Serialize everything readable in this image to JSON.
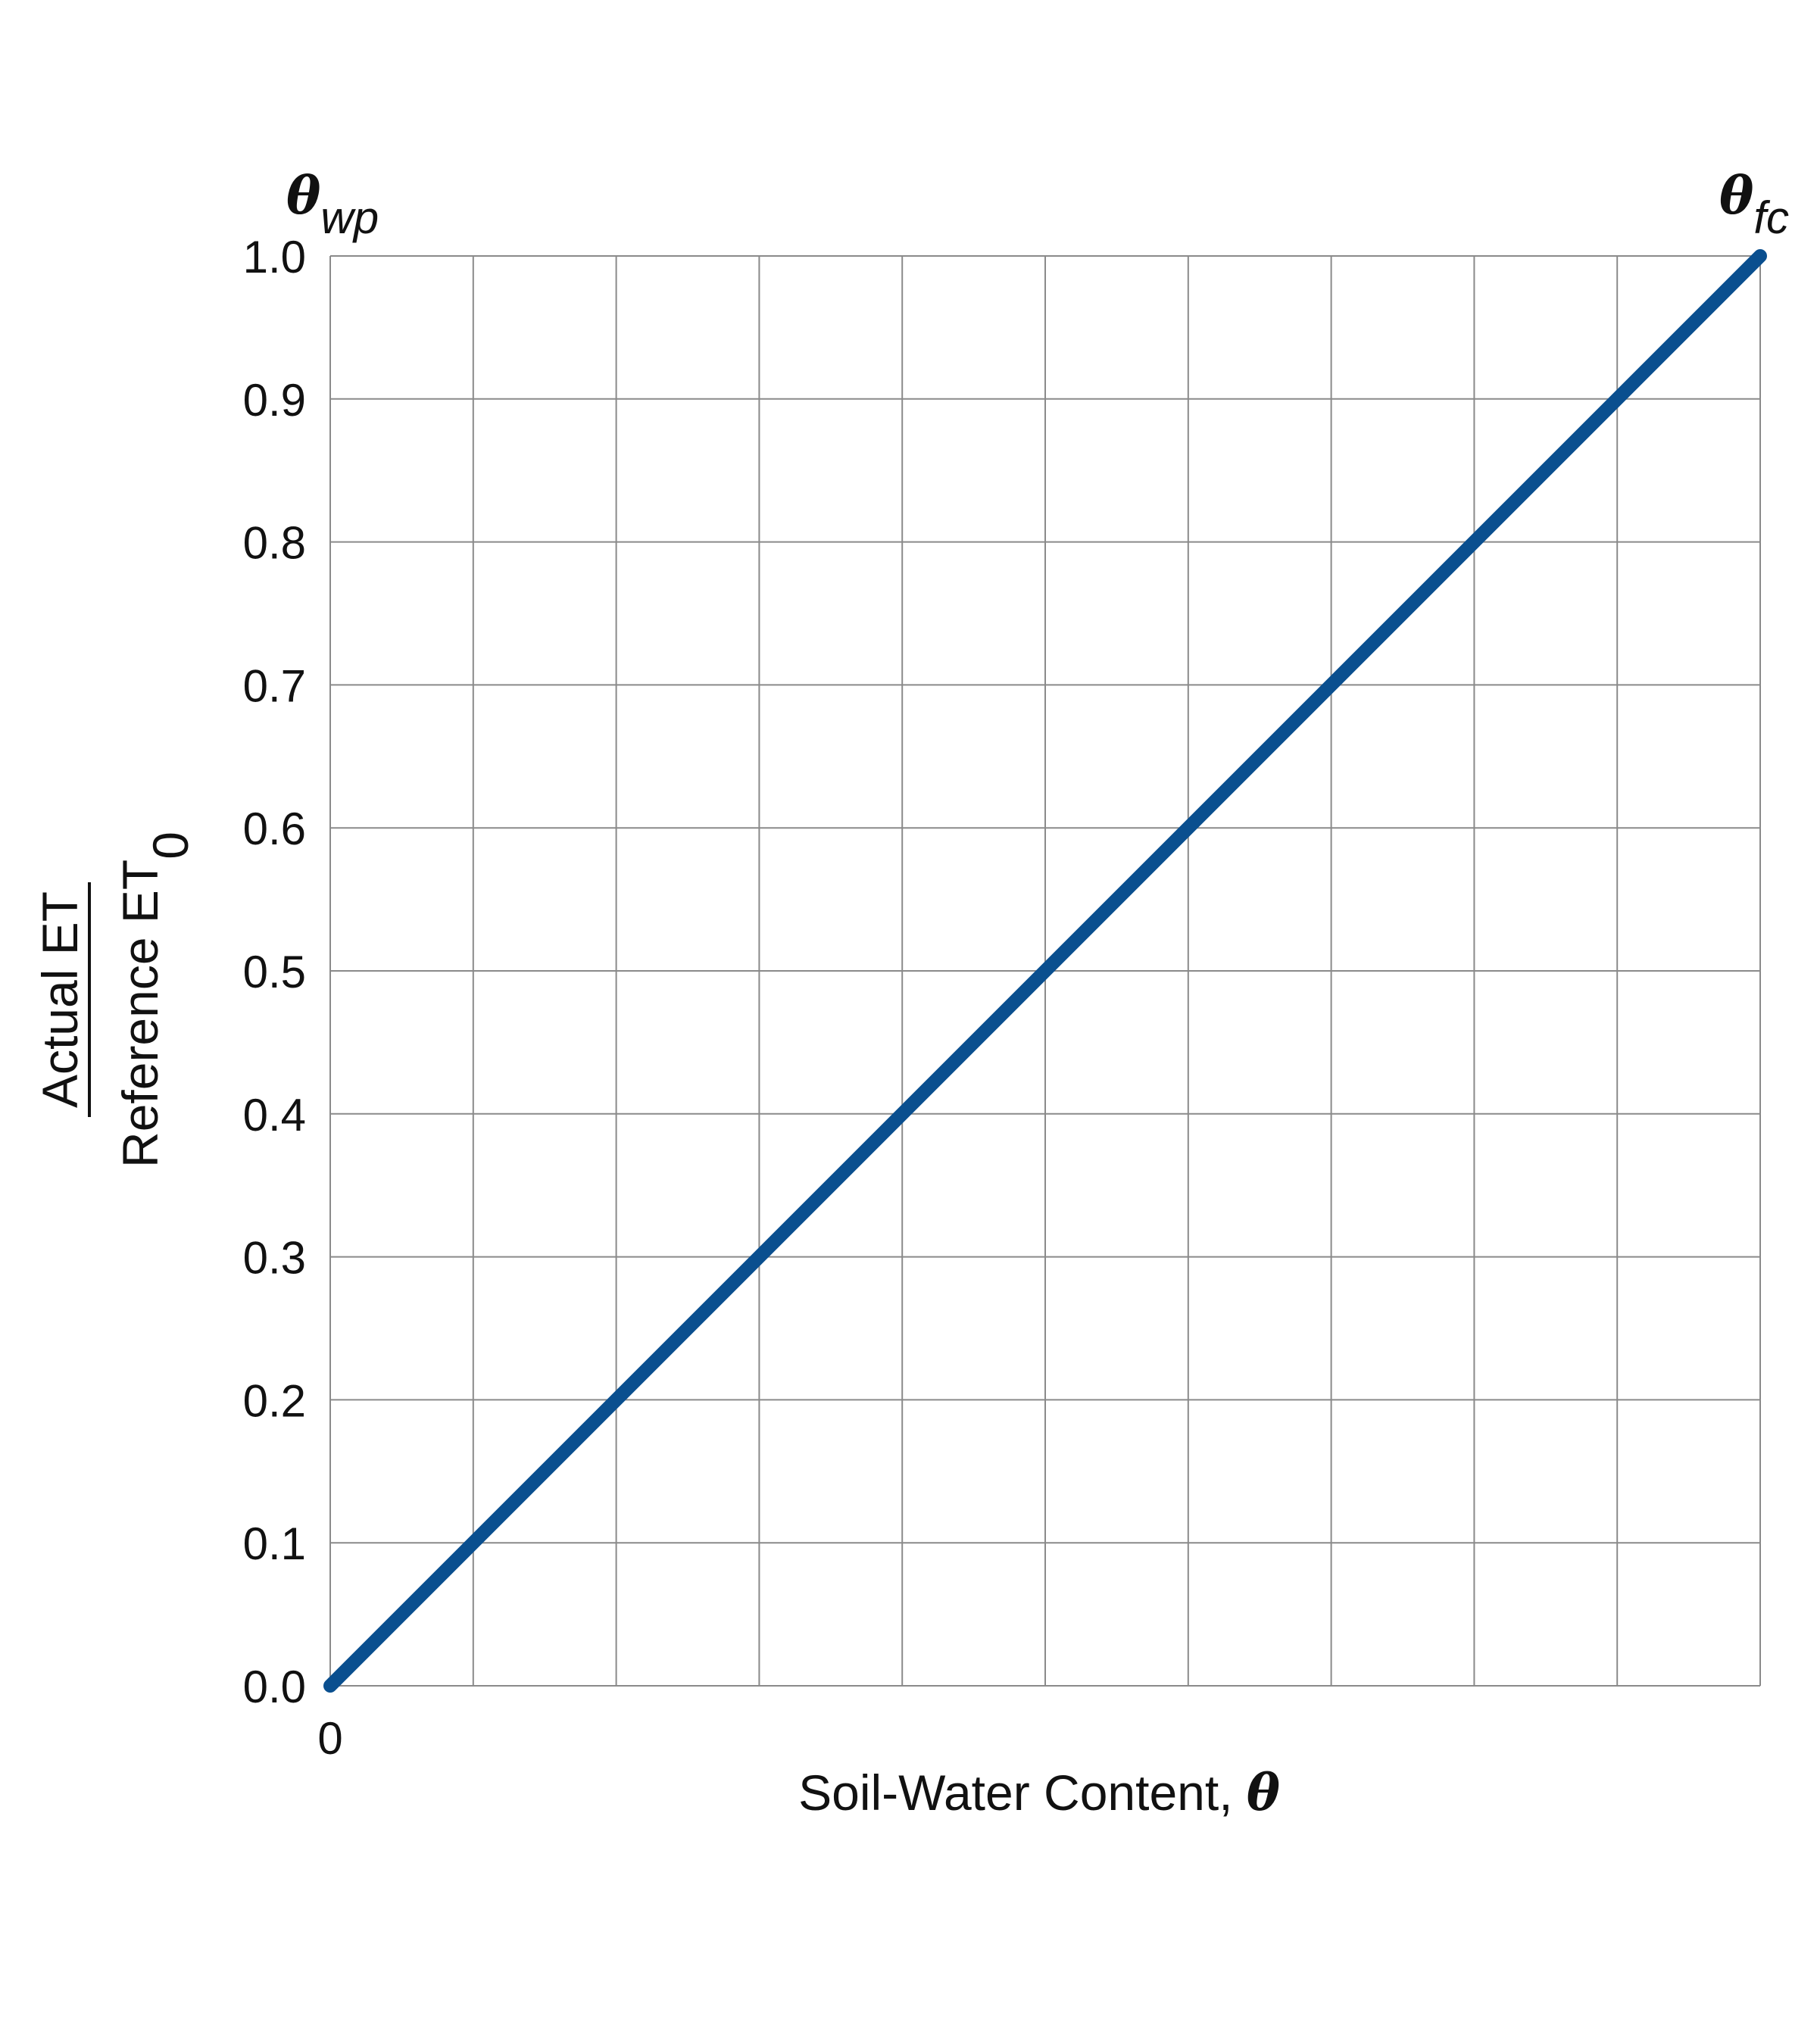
{
  "chart_data": {
    "type": "line",
    "title": "",
    "xlabel": "Soil-Water Content, ",
    "xlabel_symbol": "θ",
    "ylabel_numerator": "Actual ET",
    "ylabel_denominator": "Reference ET",
    "ylabel_denominator_subscript": "0",
    "ylim": [
      0,
      1
    ],
    "xlim": [
      0,
      1
    ],
    "x_tick_label": "0",
    "y_ticks": [
      "0.0",
      "0.1",
      "0.2",
      "0.3",
      "0.4",
      "0.5",
      "0.6",
      "0.7",
      "0.8",
      "0.9",
      "1.0"
    ],
    "grid": true,
    "annotations": {
      "left_symbol": "θ",
      "left_subscript": "wp",
      "right_symbol": "θ",
      "right_subscript": "fc"
    },
    "series": [
      {
        "x": [
          0,
          1
        ],
        "y": [
          0,
          1
        ],
        "color": "#0a4f8f"
      }
    ],
    "colors": {
      "line": "#0a4f8f",
      "grid": "#8a8a8a"
    }
  }
}
